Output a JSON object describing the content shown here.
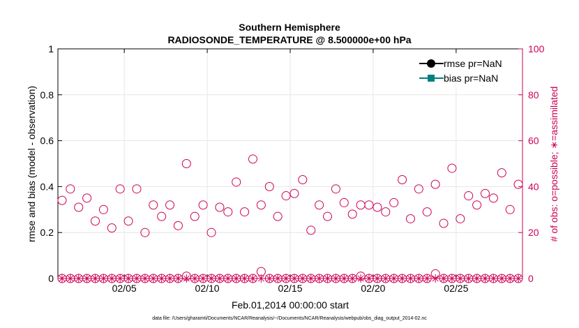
{
  "chart_data": {
    "type": "scatter",
    "title": "Southern Hemisphere",
    "subtitle": "RADIOSONDE_TEMPERATURE @ 8.500000e+00 hPa",
    "xlabel": "Feb.01,2014 00:00:00 start",
    "ylabel": "rmse and bias (model - observation)",
    "y2label": "# of obs: o=possible; ∗=assimilated",
    "footnote": "data file: /Users/gharamti/Documents/NCAR/Reanalysis/~/Documents/NCAR/Reanalysis/webpub/obs_diag_output_2014-02.nc",
    "xlim": [
      1.0,
      29.0
    ],
    "ylim": [
      0,
      1
    ],
    "y2lim": [
      0,
      100
    ],
    "x_ticks": [
      {
        "x": 5,
        "label": "02/05"
      },
      {
        "x": 10,
        "label": "02/10"
      },
      {
        "x": 15,
        "label": "02/15"
      },
      {
        "x": 20,
        "label": "02/20"
      },
      {
        "x": 25,
        "label": "02/25"
      }
    ],
    "y_ticks": [
      {
        "v": 0,
        "label": "0"
      },
      {
        "v": 0.2,
        "label": "0.2"
      },
      {
        "v": 0.4,
        "label": "0.4"
      },
      {
        "v": 0.6,
        "label": "0.6"
      },
      {
        "v": 0.8,
        "label": "0.8"
      },
      {
        "v": 1,
        "label": "1"
      }
    ],
    "y2_ticks": [
      {
        "v": 0,
        "label": "0"
      },
      {
        "v": 20,
        "label": "20"
      },
      {
        "v": 40,
        "label": "40"
      },
      {
        "v": 60,
        "label": "60"
      },
      {
        "v": 80,
        "label": "80"
      },
      {
        "v": 100,
        "label": "100"
      }
    ],
    "grid": true,
    "legend_position": "top-right",
    "legend": [
      {
        "label": "rmse pr=NaN",
        "color": "#000000",
        "marker": "circle"
      },
      {
        "label": "bias pr=NaN",
        "color": "#008080",
        "marker": "square"
      }
    ],
    "colors": {
      "axis_left": "#000000",
      "axis_right": "#cc0055",
      "obs": "#cc0055"
    },
    "series": [
      {
        "name": "possible",
        "marker": "circle",
        "x": [
          1.25,
          1.75,
          2.25,
          2.75,
          3.25,
          3.75,
          4.25,
          4.75,
          5.25,
          5.75,
          6.25,
          6.75,
          7.25,
          7.75,
          8.25,
          8.75,
          9.25,
          9.75,
          10.25,
          10.75,
          11.25,
          11.75,
          12.25,
          12.75,
          13.25,
          13.75,
          14.25,
          14.75,
          15.25,
          15.75,
          16.25,
          16.75,
          17.25,
          17.75,
          18.25,
          18.75,
          19.25,
          19.75,
          20.25,
          20.75,
          21.25,
          21.75,
          22.25,
          22.75,
          23.25,
          23.75,
          24.25,
          24.75,
          25.25,
          25.75,
          26.25,
          26.75,
          27.25,
          27.75,
          28.25,
          28.75
        ],
        "values": [
          34,
          39,
          31,
          35,
          25,
          30,
          22,
          39,
          25,
          39,
          20,
          32,
          27,
          32,
          23,
          50,
          27,
          32,
          20,
          31,
          29,
          42,
          29,
          52,
          32,
          40,
          27,
          36,
          37,
          43,
          21,
          32,
          27,
          39,
          33,
          28,
          32,
          32,
          31,
          29,
          33,
          43,
          26,
          39,
          29,
          41,
          24,
          48,
          26,
          36,
          32,
          37,
          35,
          46,
          30,
          41
        ]
      },
      {
        "name": "assimilated",
        "marker": "star",
        "x": [
          1.25,
          1.75,
          2.25,
          2.75,
          3.25,
          3.75,
          4.25,
          4.75,
          5.25,
          5.75,
          6.25,
          6.75,
          7.25,
          7.75,
          8.25,
          8.75,
          9.25,
          9.75,
          10.25,
          10.75,
          11.25,
          11.75,
          12.25,
          12.75,
          13.25,
          13.75,
          14.25,
          14.75,
          15.25,
          15.75,
          16.25,
          16.75,
          17.25,
          17.75,
          18.25,
          18.75,
          19.25,
          19.75,
          20.25,
          20.75,
          21.25,
          21.75,
          22.25,
          22.75,
          23.25,
          23.75,
          24.25,
          24.75,
          25.25,
          25.75,
          26.25,
          26.75,
          27.25,
          27.75,
          28.25,
          28.75
        ],
        "values": [
          0,
          0,
          0,
          0,
          0,
          0,
          0,
          0,
          0,
          0,
          0,
          0,
          0,
          0,
          0,
          0,
          0,
          0,
          0,
          0,
          0,
          0,
          0,
          0,
          0,
          0,
          0,
          0,
          0,
          0,
          0,
          0,
          0,
          0,
          0,
          0,
          0,
          0,
          0,
          0,
          0,
          0,
          0,
          0,
          0,
          0,
          0,
          0,
          0,
          0,
          0,
          0,
          0,
          0,
          0,
          0
        ]
      },
      {
        "name": "possible (bottom row)",
        "marker": "circle",
        "x": [
          1.25,
          1.75,
          2.25,
          2.75,
          3.25,
          3.75,
          4.25,
          4.75,
          5.25,
          5.75,
          6.25,
          6.75,
          7.25,
          7.75,
          8.25,
          8.75,
          9.25,
          9.75,
          10.25,
          10.75,
          11.25,
          11.75,
          12.25,
          12.75,
          13.25,
          13.75,
          14.25,
          14.75,
          15.25,
          15.75,
          16.25,
          16.75,
          17.25,
          17.75,
          18.25,
          18.75,
          19.25,
          19.75,
          20.25,
          20.75,
          21.25,
          21.75,
          22.25,
          22.75,
          23.25,
          23.75,
          24.25,
          24.75,
          25.25,
          25.75,
          26.25,
          26.75,
          27.25,
          27.75,
          28.25,
          28.75
        ],
        "values": [
          0,
          0,
          0,
          0,
          0,
          0,
          0,
          0,
          0,
          0,
          0,
          0,
          0,
          0,
          0,
          1,
          0,
          0,
          0,
          0,
          0,
          0,
          0,
          0,
          3,
          0,
          0,
          0,
          0,
          0,
          0,
          0,
          0,
          0,
          0,
          0,
          1,
          0,
          0,
          0,
          0,
          0,
          0,
          0,
          0,
          2,
          0,
          0,
          0,
          0,
          0,
          0,
          0,
          0,
          0,
          0
        ]
      }
    ]
  }
}
